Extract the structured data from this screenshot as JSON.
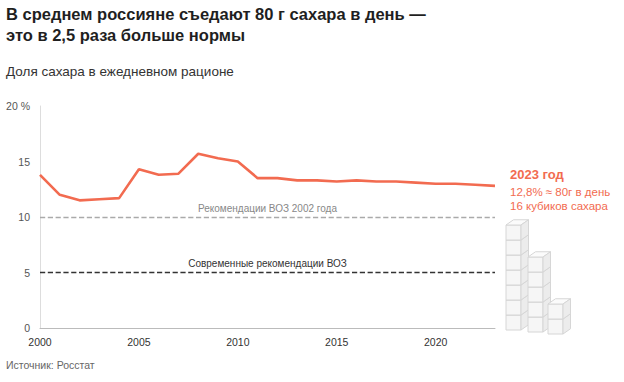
{
  "chart_data": {
    "type": "line",
    "title": "В среднем россияне съедают 80 г сахара в день — это в 2,5 раза больше нормы",
    "subtitle": "Доля сахара в ежедневном рационе",
    "source": "Источник: Росстат",
    "x": [
      2000,
      2001,
      2002,
      2003,
      2004,
      2005,
      2006,
      2007,
      2008,
      2009,
      2010,
      2011,
      2012,
      2013,
      2014,
      2015,
      2016,
      2017,
      2018,
      2019,
      2020,
      2021,
      2022,
      2023
    ],
    "values": [
      13.8,
      12.0,
      11.5,
      11.6,
      11.7,
      14.3,
      13.8,
      13.9,
      15.7,
      15.3,
      15.0,
      13.5,
      13.5,
      13.3,
      13.3,
      13.2,
      13.3,
      13.2,
      13.2,
      13.1,
      13.0,
      13.0,
      12.9,
      12.8
    ],
    "color": "#f26b50",
    "xlim": [
      2000,
      2023
    ],
    "xticks": [
      2000,
      2005,
      2010,
      2015,
      2020
    ],
    "ylim": [
      0,
      20
    ],
    "yticks": [
      0,
      5,
      10,
      15,
      {
        "value": 20,
        "label": "20 %"
      }
    ],
    "grid": false,
    "reference_lines": [
      {
        "value": 10,
        "label": "Рекомендации ВОЗ 2002 года",
        "color": "#aaaaaa"
      },
      {
        "value": 5,
        "label": "Современные рекомендации ВОЗ",
        "color": "#333333"
      }
    ],
    "annotation": {
      "title": "2023 год",
      "lines": [
        "12,8% ≈ 80г в день",
        "16 кубиков сахара"
      ],
      "color": "#f26b50"
    }
  }
}
